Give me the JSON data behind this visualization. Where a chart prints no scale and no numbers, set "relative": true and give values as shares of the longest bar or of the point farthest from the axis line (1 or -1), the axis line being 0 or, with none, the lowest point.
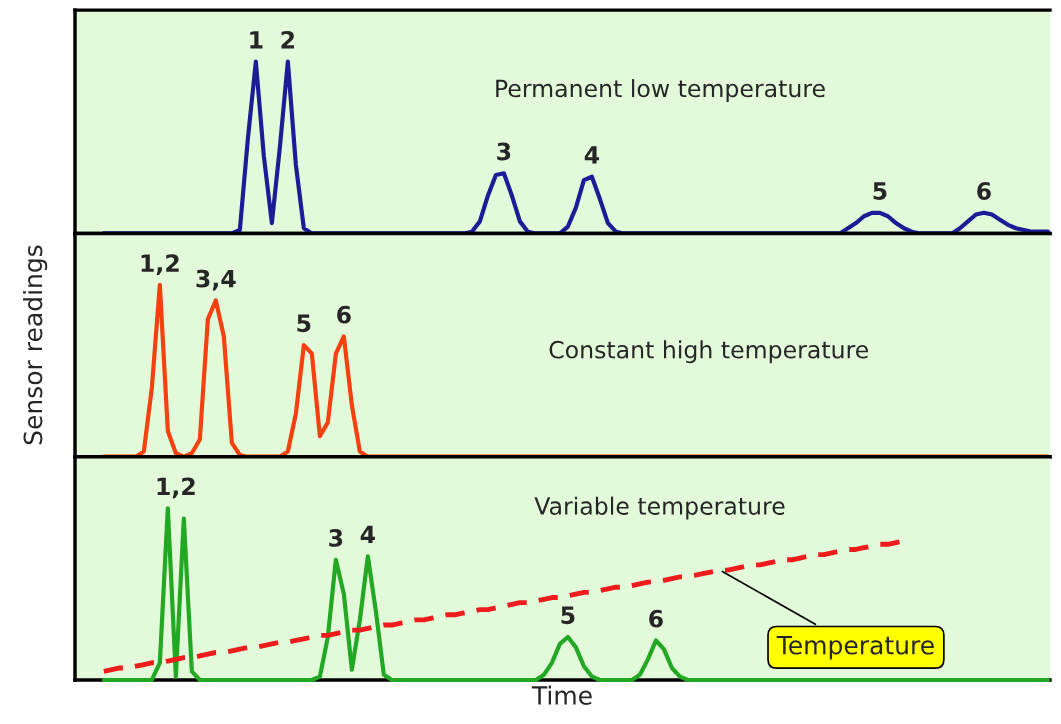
{
  "chart_data": [
    {
      "type": "line",
      "title": "Permanent low temperature",
      "relative": true,
      "annotations": [
        "1",
        "2",
        "3",
        "4",
        "5",
        "6"
      ],
      "categories": [
        null,
        null,
        null,
        null,
        null,
        null,
        null,
        null,
        null,
        null,
        null,
        null,
        null,
        null,
        null,
        null,
        null,
        null,
        null,
        null,
        null,
        null,
        null,
        null,
        null,
        null,
        null,
        null,
        null,
        null,
        null,
        null,
        null,
        null,
        null,
        null,
        null,
        null,
        null,
        null,
        null,
        null,
        null,
        null,
        null,
        null,
        null,
        null,
        null,
        null,
        null,
        null,
        null,
        null,
        null,
        null,
        null,
        null,
        null,
        null,
        null,
        null,
        null,
        null,
        null,
        null,
        null,
        null,
        null,
        null,
        null,
        null,
        null,
        null,
        null,
        null,
        null,
        null,
        null,
        null,
        null,
        null,
        null,
        null,
        null,
        null,
        null,
        null,
        null,
        null,
        null,
        null,
        null,
        null,
        null,
        null,
        null,
        null,
        null,
        null,
        null,
        null,
        null,
        null,
        null,
        null,
        null,
        null,
        null,
        null,
        null,
        null,
        null,
        null,
        null,
        null,
        null,
        null,
        null
      ],
      "series": [
        {
          "color": "#1c1c96",
          "values": [
            0,
            0,
            0,
            0,
            0,
            0,
            0,
            0,
            0,
            0,
            0,
            0,
            0,
            0,
            0,
            0,
            0,
            0.02,
            0.55,
            1,
            0.45,
            0.06,
            0.5,
            1,
            0.4,
            0.03,
            0,
            0,
            0,
            0,
            0,
            0,
            0,
            0,
            0,
            0,
            0,
            0,
            0,
            0,
            0,
            0,
            0,
            0,
            0,
            0,
            0.01,
            0.07,
            0.22,
            0.34,
            0.35,
            0.22,
            0.07,
            0.01,
            0,
            0,
            0,
            0,
            0.04,
            0.15,
            0.31,
            0.33,
            0.2,
            0.06,
            0.01,
            0,
            0,
            0,
            0,
            0,
            0,
            0,
            0,
            0,
            0,
            0,
            0,
            0,
            0,
            0,
            0,
            0,
            0,
            0,
            0,
            0,
            0,
            0,
            0,
            0,
            0,
            0,
            0,
            0.03,
            0.06,
            0.1,
            0.12,
            0.12,
            0.1,
            0.06,
            0.03,
            0.01,
            0,
            0,
            0,
            0,
            0,
            0.03,
            0.07,
            0.11,
            0.12,
            0.11,
            0.08,
            0.05,
            0.03,
            0.02,
            0.01,
            0.01,
            0.01
          ]
        }
      ]
    },
    {
      "type": "line",
      "title": "Constant high temperature",
      "ylabel": "Sensor readings",
      "relative": true,
      "annotations": [
        "1,2",
        "3,4",
        "5",
        "6"
      ],
      "categories": [
        null,
        null,
        null,
        null,
        null,
        null,
        null,
        null,
        null,
        null,
        null,
        null,
        null,
        null,
        null,
        null,
        null,
        null,
        null,
        null,
        null,
        null,
        null,
        null,
        null,
        null,
        null,
        null,
        null,
        null,
        null,
        null,
        null,
        null,
        null,
        null,
        null,
        null,
        null,
        null,
        null,
        null,
        null,
        null,
        null,
        null,
        null,
        null,
        null,
        null,
        null,
        null,
        null,
        null,
        null,
        null,
        null,
        null,
        null,
        null,
        null,
        null,
        null,
        null,
        null,
        null,
        null,
        null,
        null,
        null,
        null,
        null,
        null,
        null,
        null,
        null,
        null,
        null,
        null,
        null,
        null,
        null,
        null,
        null,
        null,
        null,
        null,
        null,
        null,
        null,
        null,
        null,
        null,
        null,
        null,
        null,
        null,
        null,
        null,
        null,
        null,
        null,
        null,
        null,
        null,
        null,
        null,
        null,
        null,
        null,
        null,
        null,
        null,
        null,
        null,
        null,
        null,
        null,
        null
      ],
      "series": [
        {
          "color": "#f5400f",
          "values": [
            0,
            0,
            0,
            0,
            0,
            0.03,
            0.4,
            1,
            0.15,
            0.02,
            0,
            0.02,
            0.1,
            0.8,
            0.91,
            0.7,
            0.08,
            0.01,
            0,
            0,
            0,
            0,
            0,
            0.03,
            0.25,
            0.65,
            0.6,
            0.12,
            0.2,
            0.6,
            0.7,
            0.3,
            0.03,
            0,
            0,
            0,
            0,
            0,
            0,
            0,
            0,
            0,
            0,
            0,
            0,
            0,
            0,
            0,
            0,
            0,
            0,
            0,
            0,
            0,
            0,
            0,
            0,
            0,
            0,
            0,
            0,
            0,
            0,
            0,
            0,
            0,
            0,
            0,
            0,
            0,
            0,
            0,
            0,
            0,
            0,
            0,
            0,
            0,
            0,
            0,
            0,
            0,
            0,
            0,
            0,
            0,
            0,
            0,
            0,
            0,
            0,
            0,
            0,
            0,
            0,
            0,
            0,
            0,
            0,
            0,
            0,
            0,
            0,
            0,
            0,
            0,
            0,
            0,
            0,
            0,
            0,
            0,
            0,
            0,
            0,
            0,
            0,
            0,
            0
          ]
        }
      ]
    },
    {
      "type": "line",
      "title": "Variable temperature",
      "xlabel": "Time",
      "relative": true,
      "annotations": [
        "1,2",
        "3",
        "4",
        "5",
        "6"
      ],
      "categories": [
        null,
        null,
        null,
        null,
        null,
        null,
        null,
        null,
        null,
        null,
        null,
        null,
        null,
        null,
        null,
        null,
        null,
        null,
        null,
        null,
        null,
        null,
        null,
        null,
        null,
        null,
        null,
        null,
        null,
        null,
        null,
        null,
        null,
        null,
        null,
        null,
        null,
        null,
        null,
        null,
        null,
        null,
        null,
        null,
        null,
        null,
        null,
        null,
        null,
        null,
        null,
        null,
        null,
        null,
        null,
        null,
        null,
        null,
        null,
        null,
        null,
        null,
        null,
        null,
        null,
        null,
        null,
        null,
        null,
        null,
        null,
        null,
        null,
        null,
        null,
        null,
        null,
        null,
        null,
        null,
        null,
        null,
        null,
        null,
        null,
        null,
        null,
        null,
        null,
        null,
        null,
        null,
        null,
        null,
        null,
        null,
        null,
        null,
        null,
        null,
        null,
        null,
        null,
        null,
        null,
        null,
        null,
        null,
        null,
        null,
        null,
        null,
        null,
        null,
        null,
        null,
        null,
        null,
        null
      ],
      "series": [
        {
          "color": "#22a822",
          "values": [
            0,
            0,
            0,
            0,
            0,
            0,
            0,
            0.1,
            1,
            0.02,
            0.94,
            0.05,
            0,
            0,
            0,
            0,
            0,
            0,
            0,
            0,
            0,
            0,
            0,
            0,
            0,
            0,
            0,
            0.02,
            0.25,
            0.7,
            0.5,
            0.06,
            0.35,
            0.72,
            0.4,
            0.03,
            0,
            0,
            0,
            0,
            0,
            0,
            0,
            0,
            0,
            0,
            0,
            0,
            0,
            0,
            0,
            0,
            0,
            0,
            0,
            0.03,
            0.1,
            0.21,
            0.25,
            0.19,
            0.08,
            0.02,
            0,
            0,
            0,
            0,
            0,
            0.03,
            0.12,
            0.23,
            0.18,
            0.07,
            0.02,
            0,
            0,
            0,
            0,
            0,
            0,
            0,
            0,
            0,
            0,
            0,
            0,
            0,
            0,
            0,
            0,
            0,
            0,
            0,
            0,
            0,
            0,
            0,
            0,
            0,
            0,
            0,
            0,
            0,
            0,
            0,
            0,
            0,
            0,
            0,
            0,
            0,
            0,
            0,
            0,
            0,
            0,
            0,
            0,
            0,
            0
          ]
        },
        {
          "name": "Temperature",
          "type": "line",
          "line_style": "dashed",
          "color": "#ee1c1c",
          "values": [
            0.05,
            0.06,
            0.07,
            0.07,
            0.08,
            0.09,
            0.1,
            0.1,
            0.11,
            0.12,
            0.13,
            0.13,
            0.14,
            0.15,
            0.16,
            0.16,
            0.17,
            0.18,
            0.19,
            0.19,
            0.2,
            0.21,
            0.22,
            0.22,
            0.23,
            0.24,
            0.25,
            0.26,
            0.26,
            0.27,
            0.28,
            0.29,
            0.29,
            0.3,
            0.31,
            0.32,
            0.32,
            0.33,
            0.34,
            0.35,
            0.35,
            0.36,
            0.37,
            0.38,
            0.38,
            0.39,
            0.4,
            0.41,
            0.41,
            0.42,
            0.43,
            0.44,
            0.45,
            0.45,
            0.46,
            0.47,
            0.48,
            0.48,
            0.49,
            0.5,
            0.51,
            0.51,
            0.52,
            0.53,
            0.54,
            0.54,
            0.55,
            0.56,
            0.57,
            0.57,
            0.58,
            0.59,
            0.6,
            0.6,
            0.61,
            0.62,
            0.63,
            0.64,
            0.64,
            0.65,
            0.66,
            0.67,
            0.67,
            0.68,
            0.69,
            0.7,
            0.7,
            0.71,
            0.72,
            0.73,
            0.73,
            0.74,
            0.75,
            0.76,
            0.76,
            0.77,
            0.78,
            0.79,
            0.79,
            0.8,
            0.81,
            null,
            null,
            null,
            null,
            null,
            null,
            null,
            null,
            null,
            null,
            null,
            null,
            null,
            null,
            null,
            null,
            null,
            null
          ]
        }
      ]
    }
  ]
}
